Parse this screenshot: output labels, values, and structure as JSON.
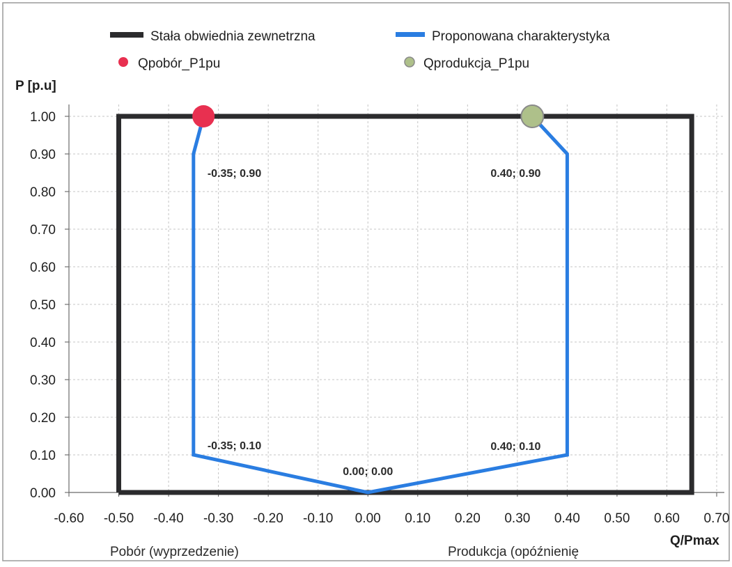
{
  "chart_data": {
    "type": "line",
    "ylabel": "P [p.u]",
    "xlabel": "Q/Pmax",
    "region_left": "Pobór (wyprzedzenie)",
    "region_right": "Produkcja (opóźnienię",
    "xlim": [
      -0.6,
      0.7
    ],
    "ylim": [
      0.0,
      1.0
    ],
    "x_ticks": [
      "-0.60",
      "-0.50",
      "-0.40",
      "-0.30",
      "-0.20",
      "-0.10",
      "0.00",
      "0.10",
      "0.20",
      "0.30",
      "0.40",
      "0.50",
      "0.60",
      "0.70"
    ],
    "y_ticks": [
      "0.00",
      "0.10",
      "0.20",
      "0.30",
      "0.40",
      "0.50",
      "0.60",
      "0.70",
      "0.80",
      "0.90",
      "1.00"
    ],
    "grid": true,
    "legend_position": "top",
    "series": [
      {
        "name": "Stała obwiednia zewnetrzna",
        "color": "#2b2b2d",
        "points": [
          [
            -0.5,
            0.0
          ],
          [
            -0.5,
            1.0
          ],
          [
            0.65,
            1.0
          ],
          [
            0.65,
            0.0
          ],
          [
            -0.5,
            0.0
          ]
        ]
      },
      {
        "name": "Proponowana charakterystyka",
        "color": "#2a7de1",
        "points": [
          [
            -0.33,
            1.0
          ],
          [
            -0.35,
            0.9
          ],
          [
            -0.35,
            0.1
          ],
          [
            0.0,
            0.0
          ],
          [
            0.4,
            0.1
          ],
          [
            0.4,
            0.9
          ],
          [
            0.33,
            1.0
          ]
        ]
      }
    ],
    "markers": [
      {
        "name": "Qpobór_P1pu",
        "color": "#e83050",
        "x": -0.33,
        "y": 1.0
      },
      {
        "name": "Qprodukcja_P1pu",
        "color": "#aec08a",
        "x": 0.33,
        "y": 1.0
      }
    ],
    "annotations": [
      {
        "text": "-0.35; 0.90",
        "x": -0.35,
        "y": 0.9
      },
      {
        "text": "0.40; 0.90",
        "x": 0.4,
        "y": 0.9
      },
      {
        "text": "-0.35; 0.10",
        "x": -0.35,
        "y": 0.1
      },
      {
        "text": "0.40; 0.10",
        "x": 0.4,
        "y": 0.1
      },
      {
        "text": "0.00; 0.00",
        "x": 0.0,
        "y": 0.0
      }
    ]
  }
}
